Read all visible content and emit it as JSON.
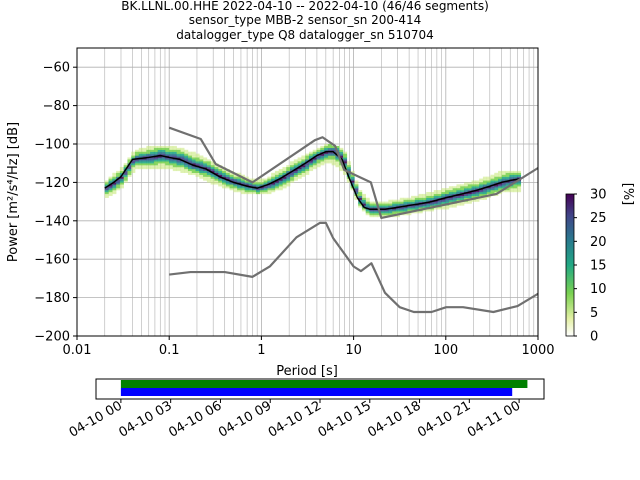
{
  "figure": {
    "title_lines": [
      "BK.LLNL.00.HHE   2022-04-10 -- 2022-04-10  (46/46 segments)",
      "sensor_type MBB-2 sensor_sn 200-414",
      "datalogger_type Q8 datalogger_sn 510704"
    ]
  },
  "chart_data": [
    {
      "type": "heatmap",
      "title": "BK.LLNL.00.HHE   2022-04-10 -- 2022-04-10  (46/46 segments)",
      "xlabel": "Period [s]",
      "ylabel": "Power [m²/s⁴/Hz] [dB]",
      "xscale": "log",
      "xlim": [
        0.01,
        1000
      ],
      "ylim": [
        -200,
        -50
      ],
      "x_tick_labels": [
        "0.01",
        "0.1",
        "1",
        "10",
        "100",
        "1000"
      ],
      "y_ticks": [
        -200,
        -180,
        -160,
        -140,
        -120,
        -100,
        -80,
        -60
      ],
      "y_tick_labels": [
        "−200",
        "−180",
        "−160",
        "−140",
        "−120",
        "−100",
        "−80",
        "−60"
      ],
      "grid": true,
      "colorbar": {
        "label": "[%]",
        "range": [
          0,
          30
        ],
        "ticks": [
          0,
          5,
          10,
          15,
          20,
          25,
          30
        ],
        "colors": [
          "#ffffff",
          "#c6e879",
          "#7ad151",
          "#22a884",
          "#2a788e",
          "#414487",
          "#440154"
        ]
      },
      "series": [
        {
          "role": "mode",
          "color": "#000000",
          "period": [
            0.02,
            0.025,
            0.03,
            0.04,
            0.06,
            0.08,
            0.1,
            0.13,
            0.18,
            0.25,
            0.35,
            0.5,
            0.7,
            0.9,
            1.2,
            1.6,
            2.2,
            3.0,
            4.0,
            5.0,
            6.0,
            7.5,
            9.0,
            11,
            13,
            15,
            18,
            22,
            30,
            40,
            55,
            70,
            100,
            150,
            220,
            300,
            400,
            500,
            650
          ],
          "power_db": [
            -123,
            -120,
            -117,
            -108,
            -107,
            -106,
            -107,
            -108,
            -111,
            -113,
            -117,
            -120,
            -122,
            -123,
            -121,
            -118,
            -114,
            -110,
            -106,
            -104,
            -104,
            -108,
            -118,
            -128,
            -133,
            -134,
            -134,
            -134,
            -133,
            -132,
            -131,
            -130,
            -128,
            -126,
            -124,
            -122,
            -120,
            -119,
            -118
          ]
        },
        {
          "role": "noise-model-high",
          "color": "#707070",
          "period": [
            0.1,
            0.22,
            0.32,
            0.8,
            3.8,
            4.6,
            6.3,
            7.9,
            15.4,
            20,
            354.8,
            1000
          ],
          "power_db": [
            -91.5,
            -97.4,
            -110.5,
            -120,
            -98,
            -96.5,
            -101,
            -113.5,
            -120,
            -138.5,
            -126,
            -112.5
          ]
        },
        {
          "role": "noise-model-low",
          "color": "#707070",
          "period": [
            0.1,
            0.17,
            0.4,
            0.8,
            1.24,
            2.4,
            4.3,
            5.0,
            6.0,
            10,
            12,
            15.6,
            21.9,
            31.6,
            45,
            70,
            101,
            154,
            328,
            600,
            1000
          ],
          "power_db": [
            -168,
            -166.7,
            -166.7,
            -169.2,
            -163.7,
            -148.6,
            -141.1,
            -141.1,
            -149,
            -163.8,
            -166.2,
            -162.1,
            -177.5,
            -185,
            -187.5,
            -187.5,
            -185,
            -185,
            -187.5,
            -184.4,
            -178
          ]
        }
      ],
      "histogram_band": {
        "period": [
          0.02,
          0.03,
          0.04,
          0.06,
          0.1,
          0.18,
          0.35,
          0.7,
          1.0,
          1.6,
          3.0,
          5.0,
          7.5,
          11,
          15,
          22,
          40,
          100,
          220,
          400,
          650
        ],
        "power_db_low": [
          -128,
          -122,
          -113,
          -112,
          -113,
          -116,
          -122,
          -126,
          -126,
          -123,
          -115,
          -109,
          -114,
          -132,
          -138,
          -138,
          -136,
          -133,
          -129,
          -125,
          -124
        ],
        "power_db_high": [
          -119,
          -112,
          -104,
          -101,
          -101,
          -105,
          -112,
          -118,
          -119,
          -113,
          -105,
          -100,
          -103,
          -124,
          -131,
          -130,
          -128,
          -123,
          -119,
          -114,
          -114
        ]
      }
    },
    {
      "type": "bar",
      "role": "data-availability",
      "xlim": [
        "2022-04-09T22:30",
        "2022-04-11T01:30"
      ],
      "x_tick_labels": [
        "04-10 00",
        "04-10 03",
        "04-10 06",
        "04-10 09",
        "04-10 12",
        "04-10 15",
        "04-10 18",
        "04-10 21",
        "04-11 00"
      ],
      "series": [
        {
          "role": "data-coverage",
          "color": "#008000",
          "start": "2022-04-10T00:00",
          "end": "2022-04-11T00:30"
        },
        {
          "role": "used-segments",
          "color": "#0000ff",
          "start": "2022-04-10T00:00",
          "end": "2022-04-10T23:35"
        }
      ]
    }
  ]
}
